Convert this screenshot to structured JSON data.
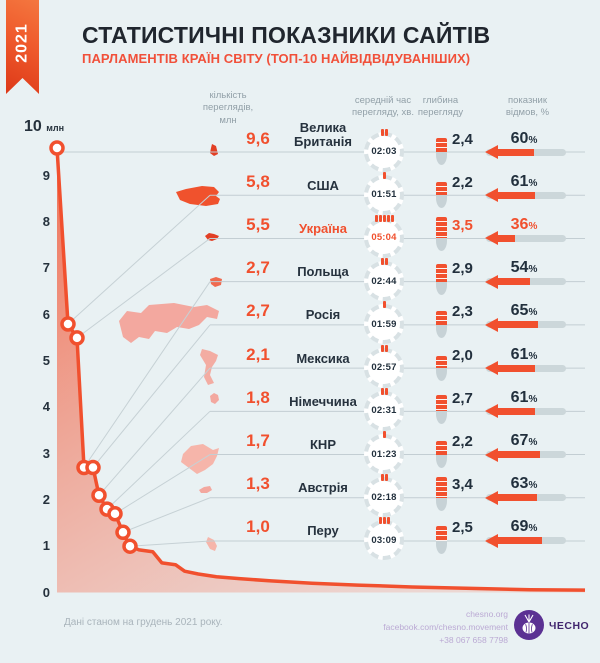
{
  "badge_year": "2021",
  "title": "СТАТИСТИЧНІ ПОКАЗНИКИ САЙТІВ",
  "subtitle": "ПАРЛАМЕНТІВ КРАЇН СВІТУ (ТОП-10 НАЙВІДВІДУВАНІШИХ)",
  "columns": {
    "views": "кількість\nпереглядів,\nмлн",
    "time": "середній час\nперегляду, хв.",
    "depth": "глибина\nперегляду",
    "bounce": "показник\nвідмов, %"
  },
  "axis": {
    "max_label": "10",
    "unit": "млн",
    "ticks": [
      9,
      8,
      7,
      6,
      5,
      4,
      3,
      2,
      1,
      0
    ]
  },
  "rows": [
    {
      "country": "Велика Британія",
      "views": "9,6",
      "time": "02:03",
      "depth": "2,4",
      "bounce": "60",
      "highlight": false,
      "map": "uk"
    },
    {
      "country": "США",
      "views": "5,8",
      "time": "01:51",
      "depth": "2,2",
      "bounce": "61",
      "highlight": false,
      "map": "usa"
    },
    {
      "country": "Україна",
      "views": "5,5",
      "time": "05:04",
      "depth": "3,5",
      "bounce": "36",
      "highlight": true,
      "map": "ukraine"
    },
    {
      "country": "Польща",
      "views": "2,7",
      "time": "02:44",
      "depth": "2,9",
      "bounce": "54",
      "highlight": false,
      "map": "poland"
    },
    {
      "country": "Росія",
      "views": "2,7",
      "time": "01:59",
      "depth": "2,3",
      "bounce": "65",
      "highlight": false,
      "map": "russia"
    },
    {
      "country": "Мексика",
      "views": "2,1",
      "time": "02:57",
      "depth": "2,0",
      "bounce": "61",
      "highlight": false,
      "map": "mexico"
    },
    {
      "country": "Німеччина",
      "views": "1,8",
      "time": "02:31",
      "depth": "2,7",
      "bounce": "61",
      "highlight": false,
      "map": "germany"
    },
    {
      "country": "КНР",
      "views": "1,7",
      "time": "01:23",
      "depth": "2,2",
      "bounce": "67",
      "highlight": false,
      "map": "china"
    },
    {
      "country": "Австрія",
      "views": "1,3",
      "time": "02:18",
      "depth": "3,4",
      "bounce": "63",
      "highlight": false,
      "map": "austria"
    },
    {
      "country": "Перу",
      "views": "1,0",
      "time": "03:09",
      "depth": "2,5",
      "bounce": "69",
      "highlight": false,
      "map": "peru"
    }
  ],
  "chart_data": {
    "type": "line",
    "title": "кількість переглядів, млн (спадна крива відвідуваності)",
    "ylabel": "млн",
    "ylim": [
      0,
      10
    ],
    "categories": [
      "Велика Британія",
      "США",
      "Україна",
      "Польща",
      "Росія",
      "Мексика",
      "Німеччина",
      "КНР",
      "Австрія",
      "Перу"
    ],
    "values": [
      9.6,
      5.8,
      5.5,
      2.7,
      2.7,
      2.1,
      1.8,
      1.7,
      1.3,
      1.0
    ],
    "series": [
      {
        "name": "перегляди, млн",
        "values": [
          9.6,
          5.8,
          5.5,
          2.7,
          2.7,
          2.1,
          1.8,
          1.7,
          1.3,
          1.0
        ]
      },
      {
        "name": "середній час перегляду, хв",
        "values": [
          "02:03",
          "01:51",
          "05:04",
          "02:44",
          "01:59",
          "02:57",
          "02:31",
          "01:23",
          "02:18",
          "03:09"
        ]
      },
      {
        "name": "глибина перегляду",
        "values": [
          2.4,
          2.2,
          3.5,
          2.9,
          2.3,
          2.0,
          2.7,
          2.2,
          3.4,
          2.5
        ]
      },
      {
        "name": "показник відмов, %",
        "values": [
          60,
          61,
          36,
          54,
          65,
          61,
          61,
          67,
          63,
          69
        ]
      }
    ],
    "tail_other_countries_est": [
      [
        0.02,
        0.92
      ],
      [
        0.05,
        0.88
      ],
      [
        0.07,
        0.64
      ],
      [
        0.1,
        0.6
      ],
      [
        0.12,
        0.46
      ],
      [
        0.15,
        0.4
      ],
      [
        0.19,
        0.34
      ],
      [
        0.24,
        0.3
      ],
      [
        0.31,
        0.25
      ],
      [
        0.4,
        0.2
      ],
      [
        0.5,
        0.16
      ],
      [
        0.62,
        0.12
      ],
      [
        0.75,
        0.09
      ],
      [
        0.88,
        0.06
      ],
      [
        1.0,
        0.05
      ]
    ],
    "grid": false,
    "legend": "none"
  },
  "footer": {
    "note": "Дані станом на грудень 2021 року.",
    "site": "chesno.org",
    "facebook": "facebook.com/chesno.movement",
    "phone": "+38 067 658 7798",
    "logo_text": "ЧЕСНО"
  },
  "colors": {
    "accent": "#f1502e",
    "dark_text": "#22303d",
    "track_gray": "#ccd7da",
    "line_gray": "#c3ced3",
    "map_pink": "#f3a89f",
    "logo_purple": "#5b3193",
    "background": "#e9f1f3"
  }
}
